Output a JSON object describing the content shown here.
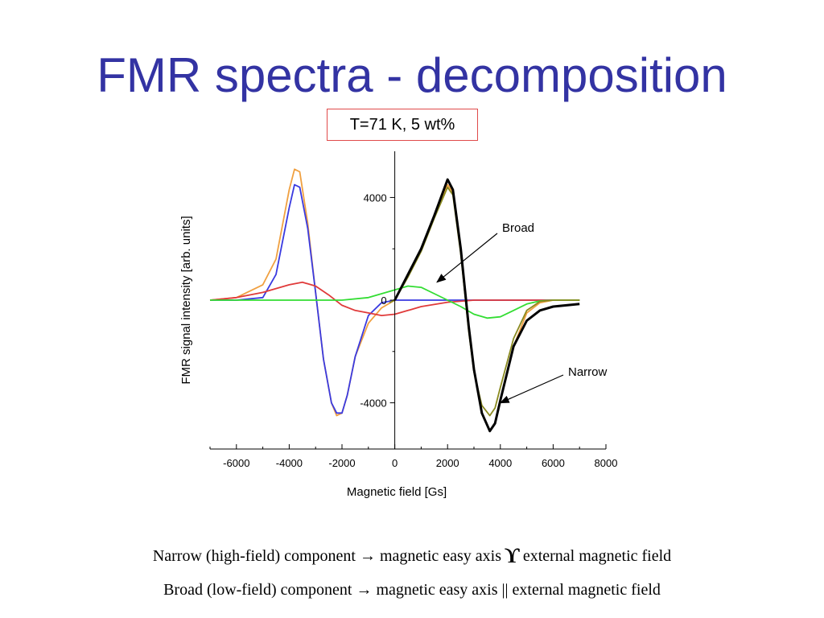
{
  "slide": {
    "title": "FMR spectra - decomposition",
    "condition": "T=71 K, 5 wt%",
    "caption1": {
      "before": "Narrow (high-field) component → magnetic easy axis",
      "symbol": "ϒ",
      "after": "external magnetic field"
    },
    "caption2": "Broad (low-field) component → magnetic easy axis || external magnetic field"
  },
  "chart_data": {
    "type": "line",
    "xlabel": "Magnetic field [Gs]",
    "ylabel": "FMR signal intensity [arb. units]",
    "xlim": [
      -7000,
      8000
    ],
    "ylim": [
      -5800,
      5800
    ],
    "xticks": [
      -6000,
      -4000,
      -2000,
      0,
      2000,
      4000,
      6000,
      8000
    ],
    "yticks": [
      4000,
      0,
      -4000
    ],
    "grid": false,
    "annotations": [
      {
        "text": "Broad",
        "points_to_x": 1600,
        "points_to_y": 700
      },
      {
        "text": "Narrow",
        "points_to_x": 4000,
        "points_to_y": -4000
      }
    ],
    "series": [
      {
        "color": "#f0a040",
        "x": [
          -7000,
          -6000,
          -5000,
          -4500,
          -4000,
          -3800,
          -3600,
          -3300,
          -3000,
          -2700,
          -2400,
          -2200,
          -2000,
          -1800,
          -1500,
          -1000,
          -500,
          0,
          500,
          1000,
          1500,
          2000,
          2200,
          2500,
          2800,
          3000,
          3300,
          3600,
          3800,
          4000,
          4500,
          5000,
          5500,
          6000,
          7000
        ],
        "y": [
          0,
          100,
          600,
          1600,
          4300,
          5100,
          5000,
          3000,
          300,
          -2300,
          -4000,
          -4500,
          -4400,
          -3700,
          -2200,
          -900,
          -300,
          0,
          1000,
          2000,
          3300,
          4500,
          4200,
          2000,
          -1000,
          -2700,
          -4400,
          -5100,
          -4800,
          -3900,
          -1800,
          -500,
          -100,
          0,
          0
        ]
      },
      {
        "color": "#3a3ae0",
        "x": [
          -7000,
          -6000,
          -5000,
          -4500,
          -4000,
          -3800,
          -3600,
          -3300,
          -3000,
          -2700,
          -2400,
          -2200,
          -2000,
          -1800,
          -1500,
          -1000,
          -500,
          0,
          2000,
          4000,
          7000
        ],
        "y": [
          0,
          0,
          100,
          1000,
          3600,
          4500,
          4400,
          2800,
          300,
          -2300,
          -4000,
          -4400,
          -4400,
          -3700,
          -2200,
          -600,
          -100,
          0,
          0,
          0,
          0
        ]
      },
      {
        "color": "#e03a3a",
        "x": [
          -7000,
          -6000,
          -5000,
          -4000,
          -3500,
          -3000,
          -2500,
          -2000,
          -1500,
          -1000,
          -500,
          0,
          500,
          1000,
          2000,
          3000,
          4000,
          5000,
          7000
        ],
        "y": [
          0,
          100,
          300,
          600,
          700,
          550,
          200,
          -200,
          -400,
          -500,
          -600,
          -550,
          -400,
          -250,
          -80,
          0,
          0,
          0,
          0
        ]
      },
      {
        "color": "#33dd33",
        "x": [
          -7000,
          -4000,
          -2000,
          -1000,
          0,
          500,
          1000,
          1500,
          2000,
          2500,
          3000,
          3500,
          4000,
          4500,
          5000,
          5500,
          6000,
          7000
        ],
        "y": [
          0,
          0,
          0,
          100,
          400,
          550,
          500,
          250,
          0,
          -250,
          -550,
          -700,
          -650,
          -400,
          -150,
          -30,
          0,
          0
        ]
      },
      {
        "color": "#8a8a20",
        "x": [
          -200,
          0,
          500,
          1000,
          1500,
          2000,
          2200,
          2500,
          2800,
          3000,
          3300,
          3600,
          3800,
          4000,
          4500,
          5000,
          5500,
          6000,
          7000
        ],
        "y": [
          -100,
          0,
          900,
          1900,
          3200,
          4400,
          4100,
          1800,
          -1200,
          -2800,
          -4100,
          -4500,
          -4200,
          -3400,
          -1500,
          -400,
          -50,
          0,
          0
        ]
      },
      {
        "color": "#000000",
        "x": [
          0,
          500,
          1000,
          1500,
          2000,
          2200,
          2500,
          2800,
          3000,
          3300,
          3600,
          3800,
          4000,
          4500,
          5000,
          5500,
          6000,
          6500,
          7000
        ],
        "y": [
          0,
          1000,
          2000,
          3300,
          4700,
          4300,
          2000,
          -1000,
          -2700,
          -4400,
          -5100,
          -4800,
          -3900,
          -1800,
          -800,
          -400,
          -250,
          -200,
          -150
        ]
      }
    ]
  }
}
